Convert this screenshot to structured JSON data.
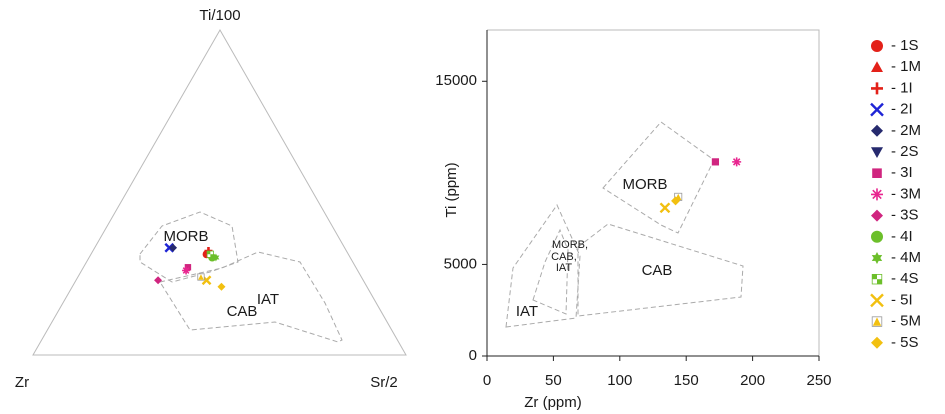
{
  "chart_data": [
    {
      "type": "ternary",
      "apex_labels": {
        "top": "Ti/100",
        "left": "Zr",
        "right": "Sr/2"
      },
      "field_labels": [
        "MORB",
        "IAT",
        "CAB"
      ],
      "series": [
        {
          "marker": "circle",
          "color": "#e32119",
          "ti": [
            31
          ],
          "zr": [
            38
          ],
          "sr": [
            31
          ]
        },
        {
          "marker": "triangle",
          "color": "#e32119",
          "ti": [
            31
          ],
          "zr": [
            37
          ],
          "sr": [
            32
          ]
        },
        {
          "marker": "plus",
          "color": "#e32119",
          "ti": [
            32
          ],
          "zr": [
            37
          ],
          "sr": [
            31
          ]
        },
        {
          "marker": "x",
          "color": "#1f25d6",
          "ti": [
            33
          ],
          "zr": [
            47
          ],
          "sr": [
            20
          ]
        },
        {
          "marker": "diamond",
          "color": "#262a6e",
          "ti": [
            33
          ],
          "zr": [
            46
          ],
          "sr": [
            21
          ]
        },
        {
          "marker": "triangle-down",
          "color": "#262a6e",
          "ti": [],
          "zr": [],
          "sr": []
        },
        {
          "marker": "square",
          "color": "#d0257f",
          "ti": [
            27
          ],
          "zr": [
            45
          ],
          "sr": [
            28
          ]
        },
        {
          "marker": "asterisk",
          "color": "#e8258f",
          "ti": [
            26
          ],
          "zr": [
            46
          ],
          "sr": [
            28
          ]
        },
        {
          "marker": "diamond",
          "color": "#d0257f",
          "ti": [
            23
          ],
          "zr": [
            55
          ],
          "sr": [
            22
          ]
        },
        {
          "marker": "circle",
          "color": "#6cbf2a",
          "ti": [
            30
          ],
          "zr": [
            37
          ],
          "sr": [
            33
          ]
        },
        {
          "marker": "star",
          "color": "#6cbf2a",
          "ti": [
            30
          ],
          "zr": [
            36
          ],
          "sr": [
            34
          ]
        },
        {
          "marker": "checker",
          "color": "#6cbf2a",
          "ti": [
            31
          ],
          "zr": [
            37
          ],
          "sr": [
            32
          ]
        },
        {
          "marker": "x",
          "color": "#f2c010",
          "ti": [
            23
          ],
          "zr": [
            42
          ],
          "sr": [
            35
          ]
        },
        {
          "marker": "box-triangle",
          "color": "#f2c010",
          "ti": [
            24
          ],
          "zr": [
            43
          ],
          "sr": [
            33
          ]
        },
        {
          "marker": "diamond",
          "color": "#f2c010",
          "ti": [
            21
          ],
          "zr": [
            39
          ],
          "sr": [
            40
          ]
        }
      ]
    },
    {
      "type": "scatter",
      "x_label": "Zr (ppm)",
      "y_label": "Ti (ppm)",
      "xlim": [
        0,
        250
      ],
      "ylim": [
        0,
        17800
      ],
      "xticks": [
        0,
        50,
        100,
        150,
        200,
        250
      ],
      "yticks": [
        0,
        5000,
        15000
      ],
      "field_labels": [
        "MORB",
        "CAB",
        "IAT",
        "MORB,",
        "CAB,",
        "IAT"
      ],
      "series": [
        {
          "name": "- 1S",
          "marker": "circle",
          "color": "#e32119",
          "x": [],
          "values": []
        },
        {
          "name": "- 1M",
          "marker": "triangle",
          "color": "#e32119",
          "x": [],
          "values": []
        },
        {
          "name": "- 1I",
          "marker": "plus",
          "color": "#e32119",
          "x": [],
          "values": []
        },
        {
          "name": "- 2I",
          "marker": "x",
          "color": "#1f25d6",
          "x": [],
          "values": []
        },
        {
          "name": "- 2M",
          "marker": "diamond",
          "color": "#262a6e",
          "x": [],
          "values": []
        },
        {
          "name": "- 2S",
          "marker": "triangle-down",
          "color": "#262a6e",
          "x": [],
          "values": []
        },
        {
          "name": "- 3I",
          "marker": "square",
          "color": "#d0257f",
          "x": [
            172
          ],
          "values": [
            10600
          ]
        },
        {
          "name": "- 3M",
          "marker": "asterisk",
          "color": "#e8258f",
          "x": [
            188
          ],
          "values": [
            10600
          ]
        },
        {
          "name": "- 3S",
          "marker": "diamond",
          "color": "#d0257f",
          "x": [],
          "values": []
        },
        {
          "name": "- 4I",
          "marker": "circle",
          "color": "#6cbf2a",
          "x": [],
          "values": []
        },
        {
          "name": "- 4M",
          "marker": "star",
          "color": "#6cbf2a",
          "x": [],
          "values": []
        },
        {
          "name": "- 4S",
          "marker": "checker",
          "color": "#6cbf2a",
          "x": [],
          "values": []
        },
        {
          "name": "- 5I",
          "marker": "x",
          "color": "#f2c010",
          "x": [
            134
          ],
          "values": [
            8090
          ]
        },
        {
          "name": "- 5M",
          "marker": "box-triangle",
          "color": "#f2c010",
          "x": [
            144
          ],
          "values": [
            8690
          ]
        },
        {
          "name": "- 5S",
          "marker": "diamond",
          "color": "#f2c010",
          "x": [
            142
          ],
          "values": [
            8470
          ]
        }
      ]
    }
  ]
}
